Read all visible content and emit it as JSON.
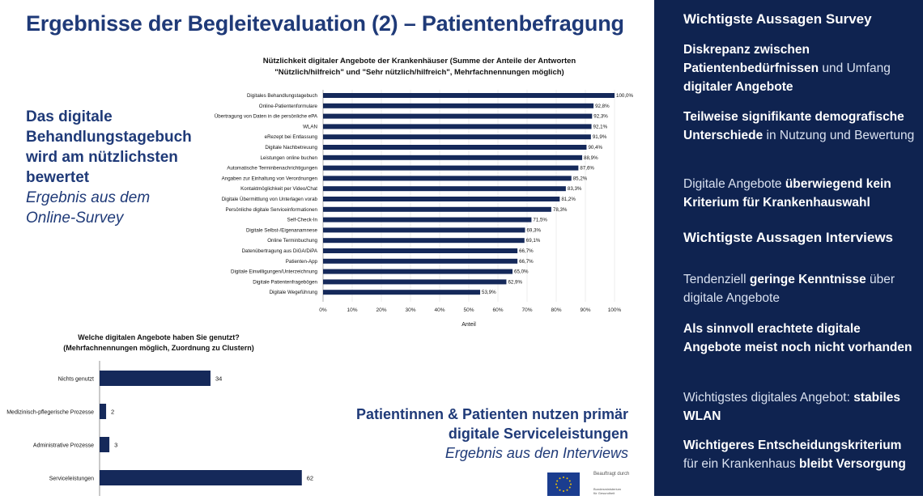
{
  "slide": {
    "title": "Ergebnisse der Begleitevaluation (2) – Patientenbefragung"
  },
  "left_note": {
    "strong": [
      "Das digitale",
      "Behandlungstagebuch",
      "wird am nützlichsten",
      "bewertet"
    ],
    "italic": [
      "Ergebnis aus dem",
      "Online-Survey"
    ]
  },
  "bottom_note": {
    "strong": [
      "Patientinnen & Patienten nutzen primär",
      "digitale Serviceleistungen"
    ],
    "italic": [
      "Ergebnis aus den Interviews"
    ]
  },
  "panel": {
    "heading1": "Wichtigste Aussagen Survey",
    "heading2": "Wichtigste Aussagen Interviews",
    "s1_bold1": "Diskrepanz zwischen Patientenbedürfnissen",
    "s1_plain": " und Umfang ",
    "s1_bold2": "digitaler Angebote",
    "s2_bold": "Teilweise signifikante demografische Unterschiede",
    "s2_plain": " in Nutzung und Bewertung",
    "s3_plain": "Digitale Angebote ",
    "s3_bold": "überwiegend kein Kriterium für Krankenhauswahl",
    "i1_plain": "Tendenziell ",
    "i1_bold": "geringe Kenntnisse",
    "i1_plain2": " über digitale Angebote",
    "i2_bold": "Als sinnvoll erachtete digitale Angebote meist noch nicht vorhanden",
    "i3_plain": "Wichtigstes digitales Angebot: ",
    "i3_bold": "stabiles WLAN",
    "i4_bold": "Wichtigeres Entscheidungskriterium",
    "i4_plain": " für ein Krankenhaus ",
    "i4_bold2": "bleibt Versorgung"
  },
  "footer": {
    "beauftragt": "Beauftragt durch",
    "ministry": [
      "Bundesministerium",
      "für Gesundheit"
    ]
  },
  "colors": {
    "bar": "#15295a",
    "title": "#1f3a78",
    "panel_bg": "#0f2350"
  },
  "chart_data": [
    {
      "type": "bar",
      "orientation": "horizontal",
      "title": "Nützlichkeit digitaler Angebote der Krankenhäuser (Summe der Anteile der Antworten",
      "subtitle": "\"Nützlich/hilfreich\" und \"Sehr nützlich/hilfreich\", Mehrfachnennungen möglich)",
      "xlabel": "Anteil",
      "xlim": [
        0,
        100
      ],
      "xticks": [
        "0%",
        "10%",
        "20%",
        "30%",
        "40%",
        "50%",
        "60%",
        "70%",
        "80%",
        "90%",
        "100%"
      ],
      "categories": [
        "Digitales Behandlungstagebuch",
        "Online-Patientenformulare",
        "Übertragung von Daten in die persönliche ePA",
        "WLAN",
        "eRezept bei Entlassung",
        "Digitale Nachbetreuung",
        "Leistungen online buchen",
        "Automatische Terminbenachrichtigungen",
        "Angaben zur Einhaltung von Verordnungen",
        "Kontaktmöglichkeit per Video/Chat",
        "Digitale Übermittlung von Unterlagen vorab",
        "Persönliche digitale Serviceinformationen",
        "Self-Check-In",
        "Digitale Selbst-/Eigenanamnese",
        "Online Terminbuchung",
        "Datenübertragung aus DiGA/DiPA",
        "Patienten-App",
        "Digitale Einwilligungen/Unterzeichnung",
        "Digitale Patientenfragebögen",
        "Digitale Wegeführung"
      ],
      "values": [
        100.0,
        92.8,
        92.3,
        92.1,
        91.9,
        90.4,
        88.9,
        87.6,
        85.2,
        83.3,
        81.2,
        78.3,
        71.5,
        69.3,
        69.1,
        66.7,
        66.7,
        65.0,
        62.9,
        53.9
      ],
      "value_labels": [
        "100,0%",
        "92,8%",
        "92,3%",
        "92,1%",
        "91,9%",
        "90,4%",
        "88,9%",
        "87,6%",
        "85,2%",
        "83,3%",
        "81,2%",
        "78,3%",
        "71,5%",
        "69,3%",
        "69,1%",
        "66,7%",
        "66,7%",
        "65,0%",
        "62,9%",
        "53,9%"
      ]
    },
    {
      "type": "bar",
      "orientation": "horizontal",
      "title": "Welche digitalen Angebote haben Sie genutzt?",
      "subtitle": "(Mehrfachnennungen möglich, Zuordnung zu Clustern)",
      "categories": [
        "Nichts genutzt",
        "Medizinisch-pflegerische Prozesse",
        "Administrative Prozesse",
        "Serviceleistungen"
      ],
      "values": [
        34,
        2,
        3,
        62
      ],
      "value_labels": [
        "34",
        "2",
        "3",
        "62"
      ],
      "xlim": [
        0,
        70
      ]
    }
  ]
}
